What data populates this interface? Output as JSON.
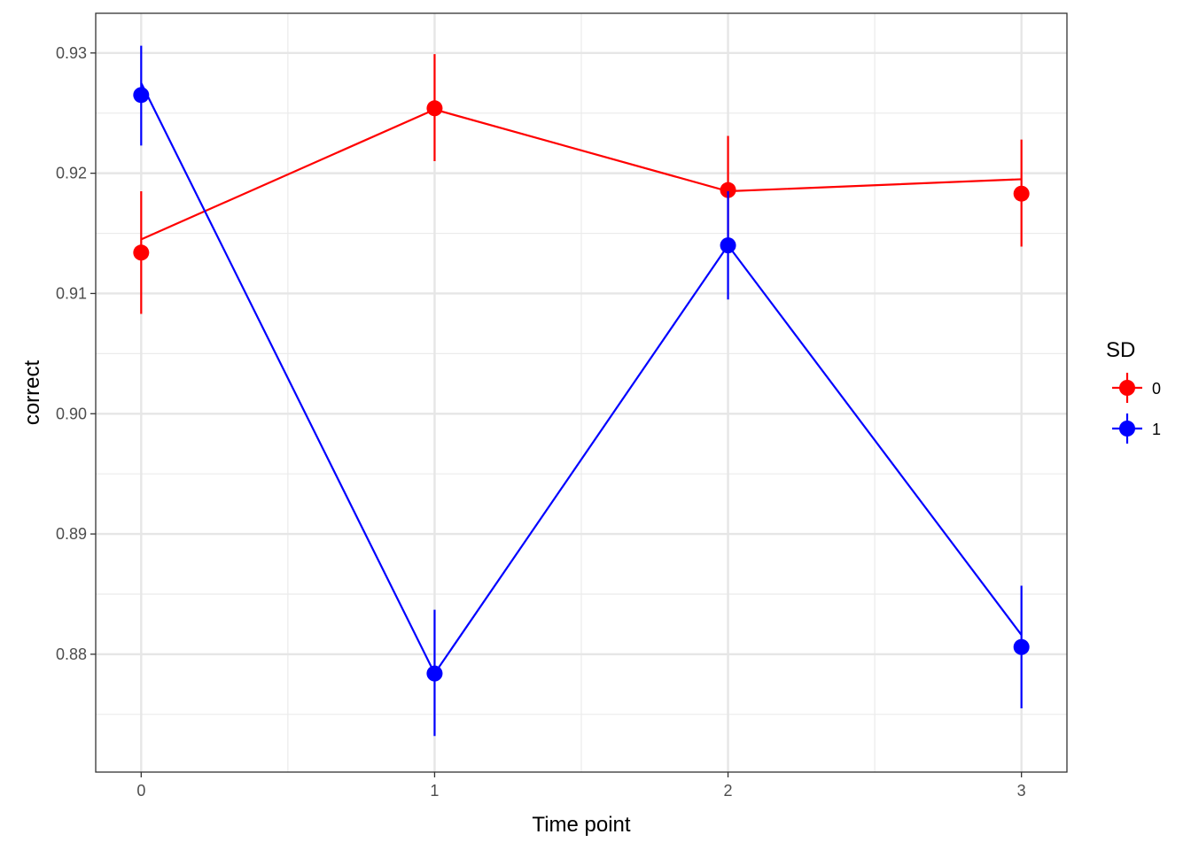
{
  "chart_data": {
    "type": "line",
    "xlabel": "Time point",
    "ylabel": "correct",
    "x": [
      0,
      1,
      2,
      3
    ],
    "xlim": [
      -0.155,
      3.155
    ],
    "ylim": [
      0.8702,
      0.9333
    ],
    "x_ticks": [
      0,
      1,
      2,
      3
    ],
    "x_tick_labels": [
      "0",
      "1",
      "2",
      "3"
    ],
    "y_ticks": [
      0.88,
      0.89,
      0.9,
      0.91,
      0.92,
      0.93
    ],
    "y_tick_labels": [
      "0.88",
      "0.89",
      "0.90",
      "0.91",
      "0.92",
      "0.93"
    ],
    "grid": true,
    "legend": {
      "title": "SD",
      "placement": "right"
    },
    "series": [
      {
        "name": "0",
        "color": "#ff0000",
        "points": [
          0.9134,
          0.9254,
          0.9186,
          0.9183
        ],
        "err_low": [
          0.9083,
          0.921,
          0.9141,
          0.9139
        ],
        "err_high": [
          0.9185,
          0.9299,
          0.9231,
          0.9228
        ],
        "line": [
          0.9145,
          0.9253,
          0.9185,
          0.9195
        ]
      },
      {
        "name": "1",
        "color": "#0000ff",
        "points": [
          0.9265,
          0.8784,
          0.914,
          0.8806
        ],
        "err_low": [
          0.9223,
          0.8732,
          0.9095,
          0.8755
        ],
        "err_high": [
          0.9306,
          0.8837,
          0.9185,
          0.8857
        ],
        "line": [
          0.9275,
          0.8784,
          0.914,
          0.8816
        ]
      }
    ]
  }
}
